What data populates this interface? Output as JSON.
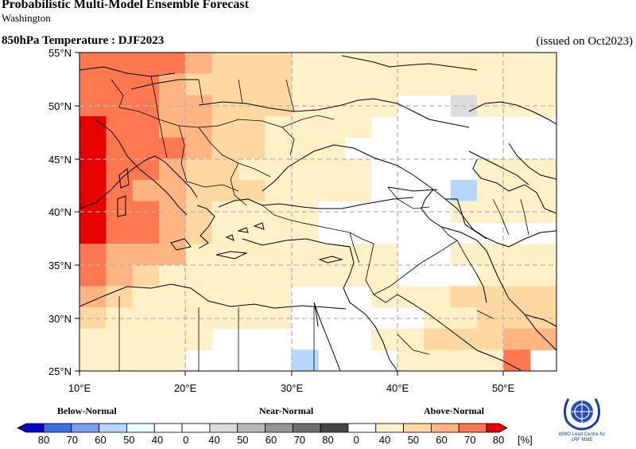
{
  "header": {
    "title": "Probabilistic Multi-Model Ensemble Forecast",
    "subtitle": "Washington",
    "map_title": "850hPa Temperature : DJF2023",
    "issued": "(issued on Oct2023)"
  },
  "map": {
    "lon_range": [
      10,
      55
    ],
    "lat_range": [
      25,
      55
    ],
    "lon_ticks": [
      "10°E",
      "20°E",
      "30°E",
      "40°E",
      "50°E"
    ],
    "lat_ticks": [
      "25°N",
      "30°N",
      "35°N",
      "40°N",
      "45°N",
      "50°N",
      "55°N"
    ],
    "grid_lines": "dashed"
  },
  "legend": {
    "below_label": "Below-Normal",
    "near_label": "Near-Normal",
    "above_label": "Above-Normal",
    "unit": "[%]",
    "tick_labels": [
      "80",
      "70",
      "60",
      "50",
      "40",
      "0",
      "40",
      "50",
      "60",
      "70",
      "80",
      "0",
      "40",
      "50",
      "60",
      "70",
      "80"
    ],
    "colors": {
      "below": [
        "#0000c8",
        "#3c6ee6",
        "#78a0f0",
        "#b4d7ff",
        "#e6ffff"
      ],
      "near": [
        "#dcdcdc",
        "#b9b9b9",
        "#969696",
        "#6e6e6e",
        "#464646"
      ],
      "above": [
        "#fff0c8",
        "#ffd7a0",
        "#ffb482",
        "#ff7850",
        "#e60000"
      ]
    }
  },
  "logo": {
    "line1": "WMO Lead Centre for",
    "line2": "LRF MME"
  }
}
